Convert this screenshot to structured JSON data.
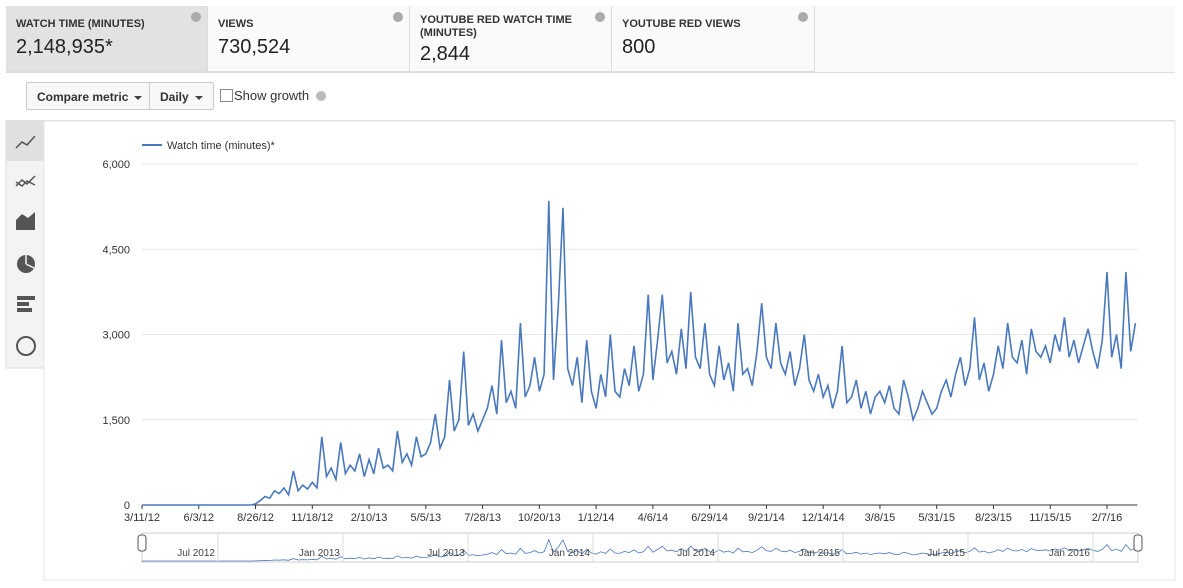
{
  "metrics": [
    {
      "title": "WATCH TIME (MINUTES)",
      "value": "2,148,935*"
    },
    {
      "title": "VIEWS",
      "value": "730,524"
    },
    {
      "title": "YOUTUBE RED WATCH TIME (MINUTES)",
      "value": "2,844"
    },
    {
      "title": "YOUTUBE RED VIEWS",
      "value": "800"
    }
  ],
  "toolbar": {
    "compare": "Compare metric",
    "interval": "Daily",
    "growth": "Show growth"
  },
  "navigator_labels": [
    "Jul 2012",
    "Jan 2013",
    "Jul 2013",
    "Jan 2014",
    "Jul 2014",
    "Jan 2015",
    "Jul 2015",
    "Jan 2016"
  ],
  "chart_data": {
    "type": "line",
    "categories": [
      "3/11/12",
      null,
      null,
      null,
      null,
      null,
      null,
      null,
      null,
      null,
      null,
      null,
      "6/3/12",
      null,
      null,
      null,
      null,
      null,
      null,
      null,
      null,
      null,
      null,
      null,
      "8/26/12",
      null,
      null,
      null,
      null,
      null,
      null,
      null,
      null,
      null,
      null,
      null,
      "11/18/12",
      null,
      null,
      null,
      null,
      null,
      null,
      null,
      null,
      null,
      null,
      null,
      "2/10/13",
      null,
      null,
      null,
      null,
      null,
      null,
      null,
      null,
      null,
      null,
      null,
      "5/5/13",
      null,
      null,
      null,
      null,
      null,
      null,
      null,
      null,
      null,
      null,
      null,
      "7/28/13",
      null,
      null,
      null,
      null,
      null,
      null,
      null,
      null,
      null,
      null,
      null,
      "10/20/13",
      null,
      null,
      null,
      null,
      null,
      null,
      null,
      null,
      null,
      null,
      null,
      "1/12/14",
      null,
      null,
      null,
      null,
      null,
      null,
      null,
      null,
      null,
      null,
      null,
      "4/6/14",
      null,
      null,
      null,
      null,
      null,
      null,
      null,
      null,
      null,
      null,
      null,
      "6/29/14",
      null,
      null,
      null,
      null,
      null,
      null,
      null,
      null,
      null,
      null,
      null,
      "9/21/14",
      null,
      null,
      null,
      null,
      null,
      null,
      null,
      null,
      null,
      null,
      null,
      "12/14/14",
      null,
      null,
      null,
      null,
      null,
      null,
      null,
      null,
      null,
      null,
      null,
      "3/8/15",
      null,
      null,
      null,
      null,
      null,
      null,
      null,
      null,
      null,
      null,
      null,
      "5/31/15",
      null,
      null,
      null,
      null,
      null,
      null,
      null,
      null,
      null,
      null,
      null,
      "8/23/15",
      null,
      null,
      null,
      null,
      null,
      null,
      null,
      null,
      null,
      null,
      null,
      "11/15/15",
      null,
      null,
      null,
      null,
      null,
      null,
      null,
      null,
      null,
      null,
      null,
      "2/7/16",
      null,
      null,
      null,
      null,
      null,
      null
    ],
    "series": [
      {
        "name": "Watch time (minutes)*",
        "color": "#4a78bd",
        "values": [
          0,
          0,
          0,
          0,
          0,
          0,
          0,
          0,
          0,
          0,
          0,
          0,
          0,
          0,
          0,
          0,
          0,
          0,
          0,
          0,
          0,
          0,
          0,
          0,
          20,
          80,
          150,
          120,
          250,
          200,
          300,
          180,
          600,
          250,
          350,
          280,
          400,
          300,
          1200,
          500,
          650,
          450,
          1100,
          550,
          700,
          600,
          900,
          500,
          800,
          550,
          1000,
          650,
          700,
          600,
          1300,
          750,
          900,
          700,
          1200,
          850,
          900,
          1100,
          1600,
          1000,
          1200,
          2200,
          1300,
          1500,
          2700,
          1400,
          1600,
          1300,
          1500,
          1700,
          2100,
          1600,
          2900,
          1800,
          2000,
          1700,
          3200,
          1900,
          2100,
          2600,
          2000,
          2300,
          5350,
          2200,
          3500,
          5230,
          2400,
          2100,
          2600,
          1800,
          2900,
          2000,
          1700,
          2300,
          1900,
          3000,
          2000,
          1900,
          2400,
          2100,
          2800,
          2000,
          2300,
          3700,
          2200,
          2900,
          3700,
          2500,
          2700,
          2300,
          3100,
          2400,
          3750,
          2600,
          2400,
          3200,
          2300,
          2100,
          2800,
          2200,
          2500,
          2000,
          3200,
          2300,
          2400,
          2100,
          2700,
          3550,
          2600,
          2400,
          3200,
          2500,
          2300,
          2700,
          2100,
          2400,
          3000,
          2200,
          2000,
          2300,
          1900,
          2100,
          1700,
          2000,
          2800,
          1800,
          1900,
          2200,
          1700,
          2000,
          1600,
          1900,
          2000,
          1800,
          2100,
          1700,
          1600,
          2200,
          1900,
          1500,
          1700,
          2000,
          1800,
          1600,
          1700,
          2000,
          2200,
          1900,
          2300,
          2600,
          2100,
          2400,
          3300,
          2200,
          2500,
          2000,
          2300,
          2800,
          2400,
          3200,
          2600,
          2500,
          2900,
          2300,
          3100,
          2700,
          2600,
          2800,
          2500,
          3000,
          2700,
          3300,
          2600,
          2900,
          2500,
          2800,
          3100,
          2700,
          2400,
          2900,
          4100,
          2600,
          3000,
          2400,
          4100,
          2700,
          3200
        ]
      }
    ],
    "ylim": [
      0,
      6000
    ],
    "yticks": [
      0,
      {
        "value": 1500,
        "label": "1,500"
      },
      {
        "value": 3000,
        "label": "3,000"
      },
      {
        "value": 4500,
        "label": "4,500"
      },
      {
        "value": 6000,
        "label": "6,000"
      }
    ],
    "grid": true,
    "legend": "top-left"
  }
}
